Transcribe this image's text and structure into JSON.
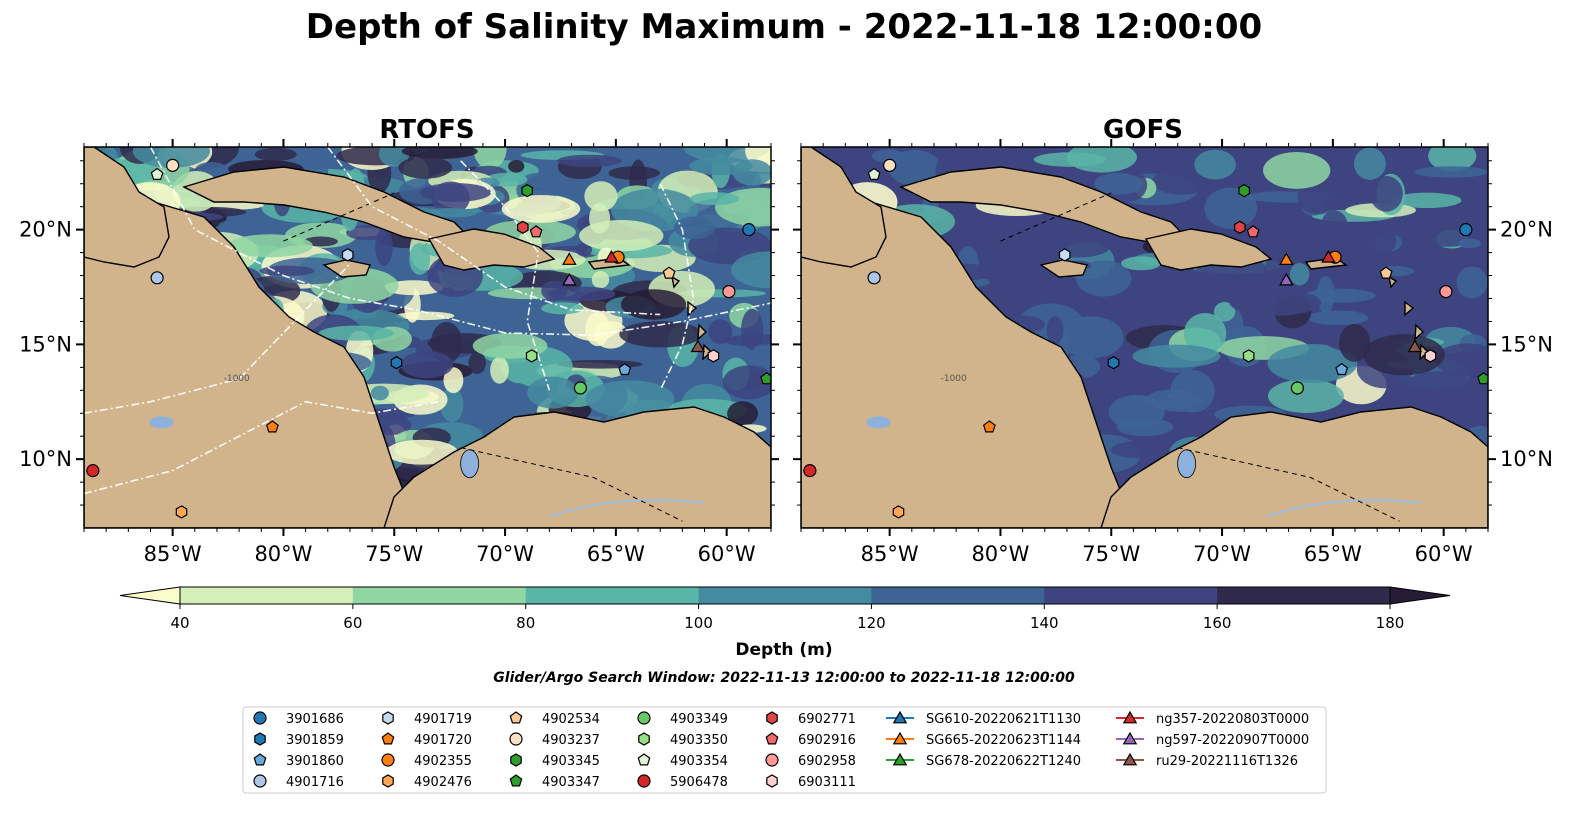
{
  "title": "Depth of Salinity Maximum - 2022-11-18 12:00:00",
  "panels": [
    {
      "title": "RTOFS"
    },
    {
      "title": "GOFS"
    }
  ],
  "axes": {
    "lon_ticks": [
      "85°W",
      "80°W",
      "75°W",
      "70°W",
      "65°W",
      "60°W"
    ],
    "lon_values": [
      -85,
      -80,
      -75,
      -70,
      -65,
      -60
    ],
    "lat_ticks": [
      "20°N",
      "15°N",
      "10°N"
    ],
    "lat_values": [
      20,
      15,
      10
    ],
    "lon_range": [
      -89,
      -58
    ],
    "lat_range": [
      7,
      23.6
    ],
    "contour_label": "-1000"
  },
  "colorbar": {
    "label": "Depth (m)",
    "ticks": [
      "40",
      "60",
      "80",
      "100",
      "120",
      "140",
      "160",
      "180"
    ],
    "colors": [
      "#d4efb8",
      "#8fd6a3",
      "#59b5a7",
      "#448aa0",
      "#3d6495",
      "#3d4480",
      "#2f2a4c"
    ],
    "extend_low": "#fbfccb",
    "extend_high": "#271c36"
  },
  "caption": "Glider/Argo Search Window: 2022-11-13 12:00:00 to 2022-11-18 12:00:00",
  "colors": {
    "land": "#d2b48c",
    "lake": "#8db1dd",
    "river": "#a1bde0"
  },
  "legend": {
    "items": [
      {
        "label": "3901686",
        "marker": "circle",
        "color": "#1f77b4"
      },
      {
        "label": "3901859",
        "marker": "hexagon",
        "color": "#1f77b4"
      },
      {
        "label": "3901860",
        "marker": "pentagon",
        "color": "#6aa9dc"
      },
      {
        "label": "4901716",
        "marker": "circle",
        "color": "#aec7e8"
      },
      {
        "label": "4901719",
        "marker": "hexagon",
        "color": "#c6dbef"
      },
      {
        "label": "4901720",
        "marker": "pentagon",
        "color": "#ff7f0e"
      },
      {
        "label": "4902355",
        "marker": "circle",
        "color": "#ff7f0e"
      },
      {
        "label": "4902476",
        "marker": "hexagon",
        "color": "#ffa754"
      },
      {
        "label": "4902534",
        "marker": "pentagon",
        "color": "#ffc994"
      },
      {
        "label": "4903237",
        "marker": "circle",
        "color": "#ffe0c2"
      },
      {
        "label": "4903345",
        "marker": "hexagon",
        "color": "#2ca02c"
      },
      {
        "label": "4903347",
        "marker": "pentagon",
        "color": "#2ca02c"
      },
      {
        "label": "4903349",
        "marker": "circle",
        "color": "#66c966"
      },
      {
        "label": "4903350",
        "marker": "hexagon",
        "color": "#98df8a"
      },
      {
        "label": "4903354",
        "marker": "pentagon",
        "color": "#dff5d8"
      },
      {
        "label": "5906478",
        "marker": "circle",
        "color": "#d62728"
      },
      {
        "label": "6902771",
        "marker": "hexagon",
        "color": "#e04545"
      },
      {
        "label": "6902916",
        "marker": "pentagon",
        "color": "#f06a6a"
      },
      {
        "label": "6902958",
        "marker": "circle",
        "color": "#ff9896"
      },
      {
        "label": "6903111",
        "marker": "hexagon",
        "color": "#ffd0ce"
      },
      {
        "label": "SG610-20220621T1130",
        "marker": "triangle",
        "color": "#1f77b4"
      },
      {
        "label": "SG665-20220623T1144",
        "marker": "triangle",
        "color": "#ff7f0e"
      },
      {
        "label": "SG678-20220622T1240",
        "marker": "triangle",
        "color": "#2ca02c"
      },
      {
        "label": "ng357-20220803T0000",
        "marker": "triangle",
        "color": "#d62728"
      },
      {
        "label": "ng597-20220907T0000",
        "marker": "triangle",
        "color": "#9467bd"
      },
      {
        "label": "ru29-20221116T1326",
        "marker": "triangle",
        "color": "#8c564b"
      }
    ]
  },
  "observations": [
    {
      "label": "3901686",
      "lon": -59,
      "lat": 20.0
    },
    {
      "label": "3901859",
      "lon": -74.9,
      "lat": 14.2
    },
    {
      "label": "3901860",
      "lon": -64.6,
      "lat": 13.9
    },
    {
      "label": "4901716",
      "lon": -85.7,
      "lat": 17.9
    },
    {
      "label": "4901719",
      "lon": -77.1,
      "lat": 18.9
    },
    {
      "label": "4901720",
      "lon": -80.5,
      "lat": 11.4
    },
    {
      "label": "4902355",
      "lon": -64.9,
      "lat": 18.8
    },
    {
      "label": "4902476",
      "lon": -84.6,
      "lat": 7.7
    },
    {
      "label": "4902534",
      "lon": -62.6,
      "lat": 18.1
    },
    {
      "label": "4903237",
      "lon": -85.0,
      "lat": 22.8
    },
    {
      "label": "4903345",
      "lon": -69.0,
      "lat": 21.7
    },
    {
      "label": "4903347",
      "lon": -58.2,
      "lat": 13.5
    },
    {
      "label": "4903349",
      "lon": -66.6,
      "lat": 13.1
    },
    {
      "label": "4903350",
      "lon": -68.8,
      "lat": 14.5
    },
    {
      "label": "4903354",
      "lon": -85.7,
      "lat": 22.4
    },
    {
      "label": "5906478",
      "lon": -88.6,
      "lat": 9.5
    },
    {
      "label": "6902771",
      "lon": -69.2,
      "lat": 20.1
    },
    {
      "label": "6902916",
      "lon": -68.6,
      "lat": 19.9
    },
    {
      "label": "6902958",
      "lon": -59.9,
      "lat": 17.3
    },
    {
      "label": "6903111",
      "lon": -60.6,
      "lat": 14.5
    },
    {
      "label": "ng357-20220803T0000",
      "lon": -65.2,
      "lat": 18.8
    },
    {
      "label": "SG665-20220623T1144",
      "lon": -67.1,
      "lat": 18.7
    },
    {
      "label": "ng597-20220907T0000",
      "lon": -67.1,
      "lat": 17.8
    },
    {
      "label": "ru29-20221116T1326",
      "lon": -61.3,
      "lat": 14.9
    }
  ]
}
